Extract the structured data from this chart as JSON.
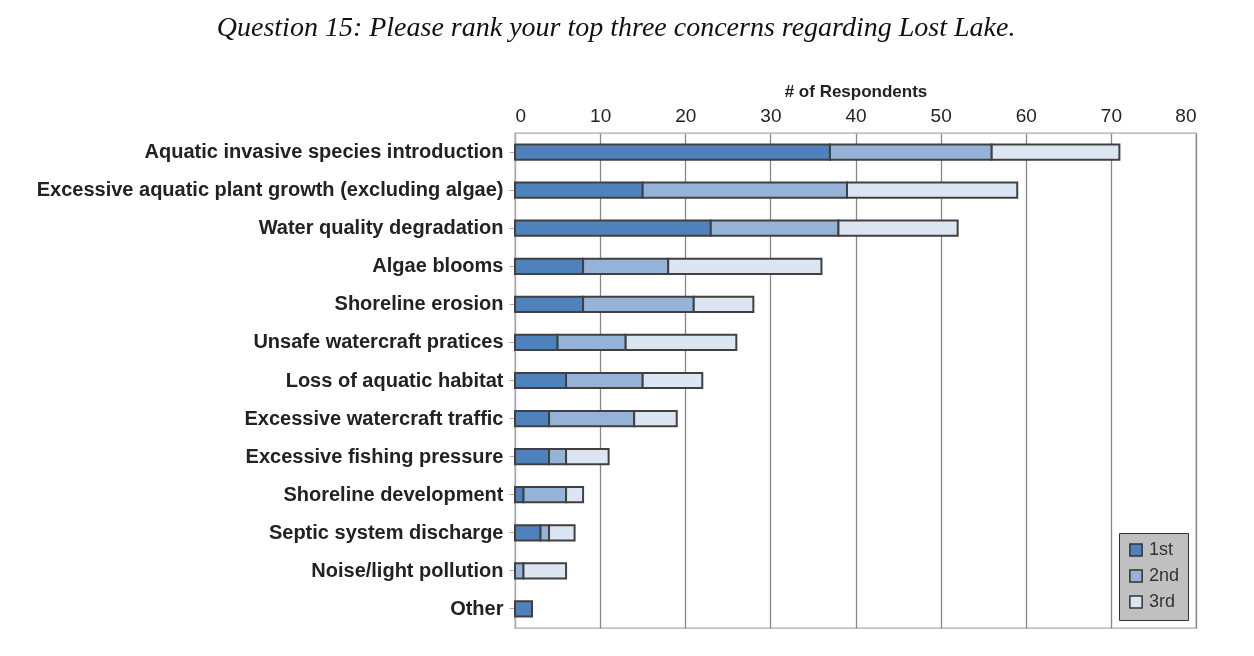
{
  "chart_data": {
    "type": "bar",
    "orientation": "horizontal",
    "stacked": true,
    "title": "Question 15:  Please rank your top three concerns regarding Lost Lake.",
    "xlabel": "# of Respondents",
    "categories": [
      "Aquatic invasive species introduction",
      "Excessive aquatic plant growth (excluding algae)",
      "Water quality degradation",
      "Algae blooms",
      "Shoreline erosion",
      "Unsafe watercraft pratices",
      "Loss of aquatic habitat",
      "Excessive watercraft traffic",
      "Excessive fishing pressure",
      "Shoreline development",
      "Septic system discharge",
      "Noise/light pollution",
      "Other"
    ],
    "series": [
      {
        "name": "1st",
        "color": "#4f81bd",
        "values": [
          37,
          15,
          23,
          8,
          8,
          5,
          6,
          4,
          4,
          1,
          3,
          0,
          2
        ]
      },
      {
        "name": "2nd",
        "color": "#95b3d7",
        "values": [
          19,
          24,
          15,
          10,
          13,
          8,
          9,
          10,
          2,
          5,
          1,
          1,
          0
        ]
      },
      {
        "name": "3rd",
        "color": "#dce6f2",
        "values": [
          15,
          20,
          14,
          18,
          7,
          13,
          7,
          5,
          5,
          2,
          3,
          5,
          0
        ]
      }
    ],
    "xlim": [
      0,
      80
    ],
    "xticks": [
      0,
      10,
      20,
      30,
      40,
      50,
      60,
      70,
      80
    ],
    "grid": "x",
    "legend": "bottom right"
  }
}
